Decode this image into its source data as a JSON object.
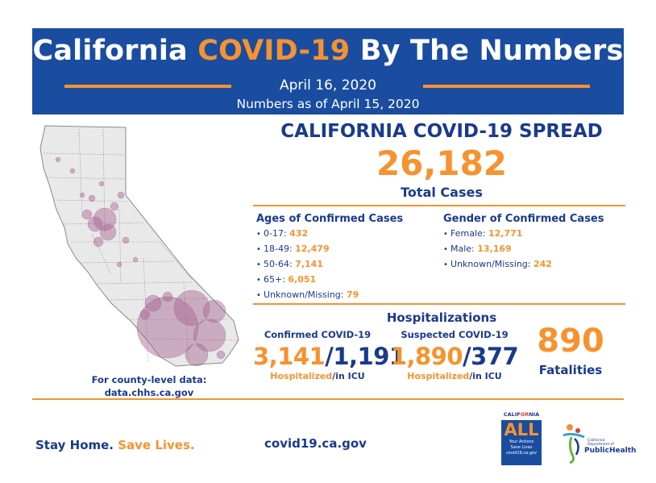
{
  "header": {
    "title_pre": "California ",
    "title_accent": "COVID-19",
    "title_post": " By The Numbers",
    "date": "April 16, 2020",
    "as_of": "Numbers as of April 15, 2020"
  },
  "spread": {
    "title": "CALIFORNIA COVID-19 SPREAD",
    "total": "26,182",
    "total_label": "Total Cases"
  },
  "ages": {
    "title": "Ages of Confirmed Cases",
    "items": [
      {
        "label": "0-17: ",
        "value": "432"
      },
      {
        "label": "18-49: ",
        "value": "12,479"
      },
      {
        "label": "50-64: ",
        "value": "7,141"
      },
      {
        "label": "65+: ",
        "value": "6,051"
      },
      {
        "label": "Unknown/Missing: ",
        "value": "79"
      }
    ]
  },
  "gender": {
    "title": "Gender of Confirmed Cases",
    "items": [
      {
        "label": "Female: ",
        "value": "12,771"
      },
      {
        "label": "Male: ",
        "value": "13,169"
      },
      {
        "label": "Unknown/Missing: ",
        "value": "242"
      }
    ]
  },
  "hospitalizations": {
    "title": "Hospitalizations",
    "confirmed": {
      "label": "Confirmed COVID-19",
      "hospitalized": "3,141",
      "icu": "1,191",
      "caption_hosp": "Hospitalized",
      "caption_icu": "/in ICU"
    },
    "suspected": {
      "label": "Suspected COVID-19",
      "hospitalized": "1,890",
      "icu": "377",
      "caption_hosp": "Hospitalized",
      "caption_icu": "/in ICU"
    }
  },
  "fatalities": {
    "number": "890",
    "label": "Fatalities"
  },
  "county_note": {
    "line1": "For county-level data:",
    "line2": "data.chhs.ca.gov"
  },
  "footer": {
    "stay_home": "Stay Home.",
    "save_lives": " Save Lives.",
    "url": "covid19.ca.gov"
  },
  "logos": {
    "ca_all_top_pre": "CALIF",
    "ca_all_top_accent": "OR",
    "ca_all_top_post": "NIA",
    "ca_all_word": "ALL",
    "ca_all_tag1": "Your Actions",
    "ca_all_tag2": "Save Lives",
    "ca_all_tag3": "covid19.ca.gov",
    "cdph_small": "California Department of",
    "cdph_name": "PublicHealth"
  },
  "colors": {
    "navy": "#1a4da0",
    "orange": "#f7922e",
    "text_blue": "#1a3a8c",
    "bubble": "#a4628f"
  }
}
